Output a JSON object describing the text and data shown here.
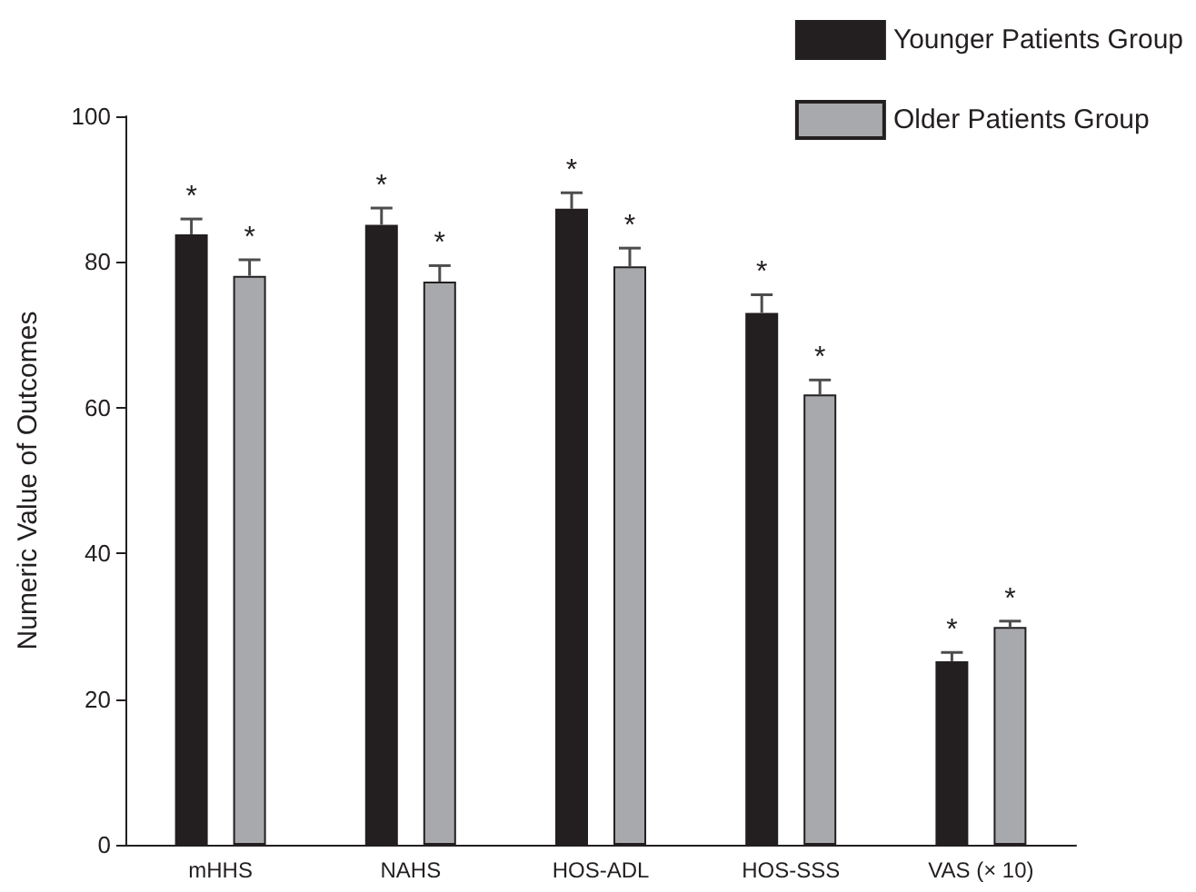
{
  "chart_data": {
    "type": "bar",
    "ylabel": "Numeric Value of Outcomes",
    "categories": [
      "mHHS",
      "NAHS",
      "HOS-ADL",
      "HOS-SSS",
      "VAS (× 10)"
    ],
    "series": [
      {
        "name": "Younger Patients Group",
        "color": "#231f20",
        "values": [
          83.8,
          85.1,
          87.3,
          73.0,
          25.2
        ],
        "errors": [
          2.1,
          2.3,
          2.2,
          2.5,
          1.2
        ],
        "value_labels": [
          "*",
          "*",
          "*",
          "*",
          "*"
        ]
      },
      {
        "name": "Older Patients Group",
        "color": "#a7a9ac",
        "values": [
          78.1,
          77.3,
          79.4,
          61.8,
          29.9
        ],
        "errors": [
          2.2,
          2.2,
          2.5,
          2.0,
          0.8
        ],
        "value_labels": [
          "*",
          "*",
          "*",
          "*",
          "*"
        ]
      }
    ],
    "ylim": [
      0,
      100
    ],
    "yticks": [
      0,
      20,
      40,
      60,
      80,
      100
    ],
    "grid": false,
    "legend": "top right"
  }
}
